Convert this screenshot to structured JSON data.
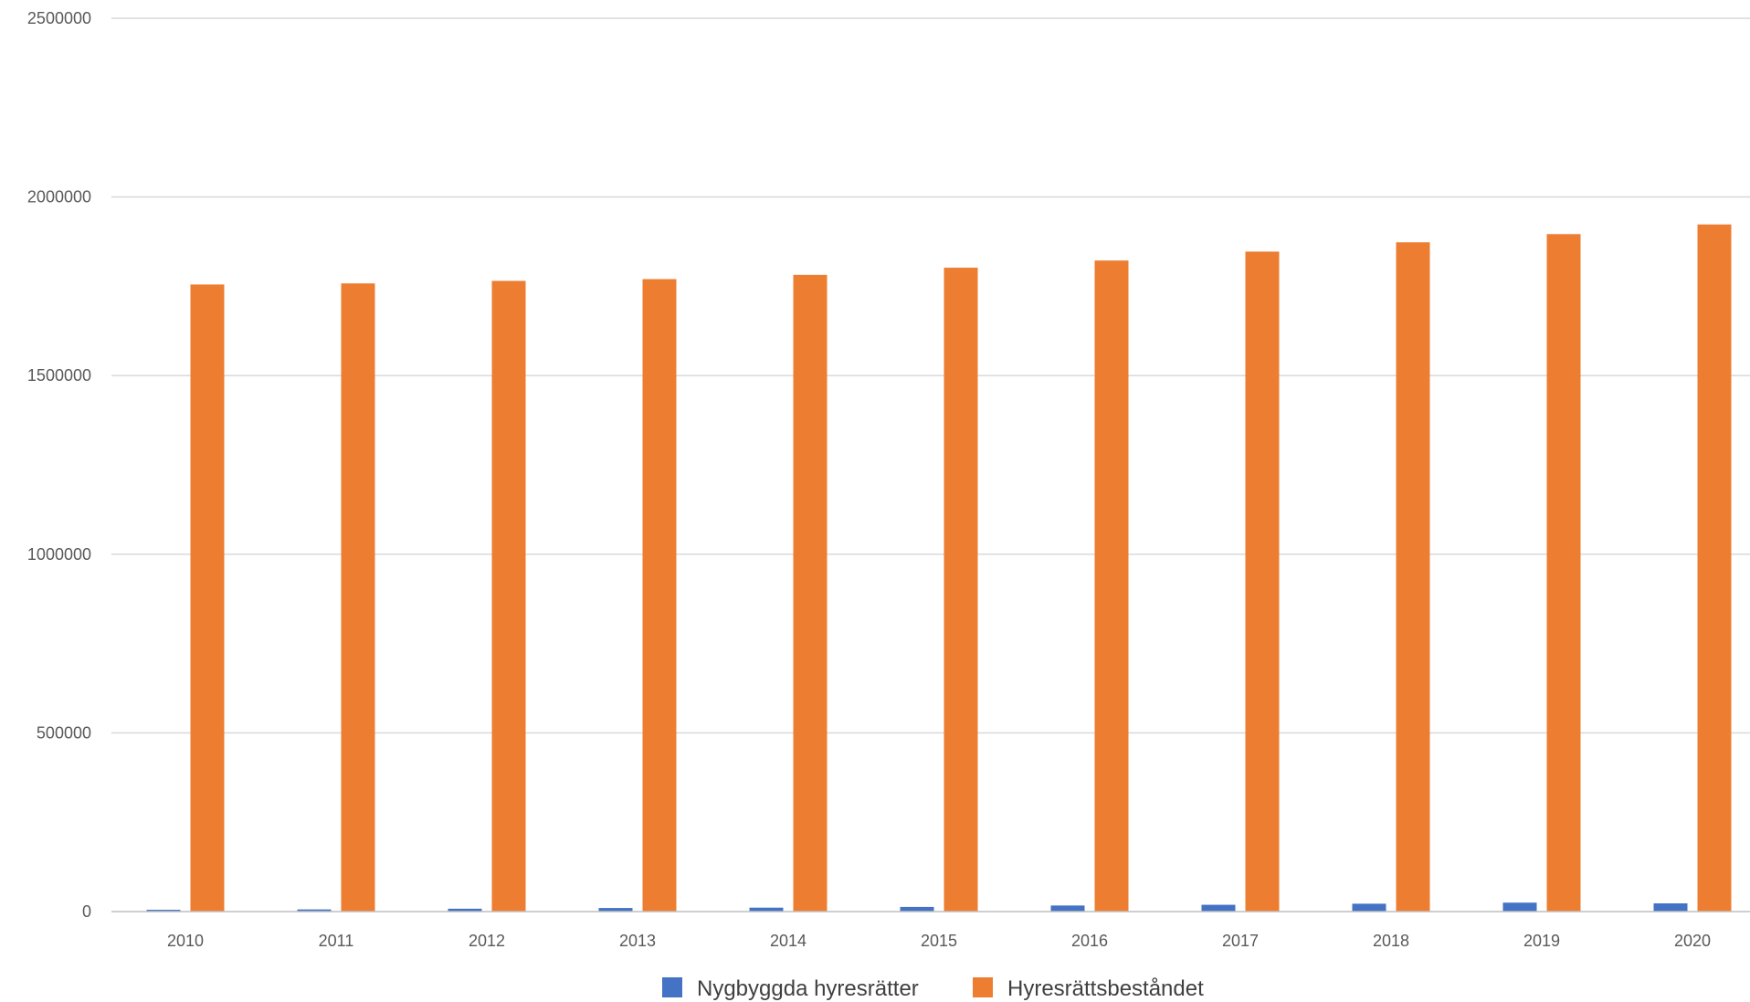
{
  "chart_data": {
    "type": "bar",
    "categories": [
      "2010",
      "2011",
      "2012",
      "2013",
      "2014",
      "2015",
      "2016",
      "2017",
      "2018",
      "2019",
      "2020"
    ],
    "series": [
      {
        "name": "Nygbyggda hyresrätter",
        "color": "#4472c4",
        "values": [
          5000,
          6000,
          8000,
          10000,
          11000,
          13000,
          17000,
          19000,
          22000,
          25000,
          23000
        ]
      },
      {
        "name": "Hyresrättsbeståndet",
        "color": "#ed7d31",
        "values": [
          1755000,
          1758000,
          1765000,
          1770000,
          1782000,
          1802000,
          1822000,
          1847000,
          1873000,
          1896000,
          1923000
        ]
      }
    ],
    "ylim": [
      0,
      2500000
    ],
    "yticks": [
      "0",
      "500000",
      "1000000",
      "1500000",
      "2000000",
      "2500000"
    ],
    "grid": true,
    "gridline_color": "#d9d9d9",
    "legend_position": "bottom"
  }
}
